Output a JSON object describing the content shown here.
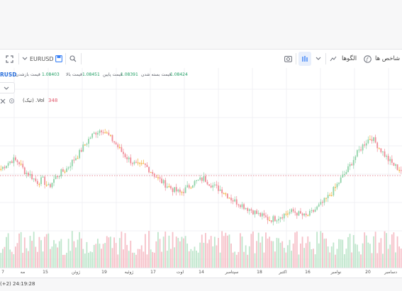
{
  "toolbar": {
    "symbol": "EURUSD",
    "patterns_label": "الگوها",
    "indicators_label": "شاخص ها",
    "icons": [
      "fullscreen-icon",
      "chevron-down-icon",
      "save-icon",
      "search-icon",
      "camera-icon",
      "bar-chart-icon",
      "chevron-down-icon",
      "function-icon"
    ]
  },
  "info": {
    "symbol": "RUSD",
    "close_label": "قیمت بسته شدن",
    "close_value": "1.08424",
    "low_label": "قیمت پایین",
    "low_value": "1.08391",
    "high_label": "قیمت بالا",
    "high_value": "1.08451",
    "open_label": "قیمت بازشدن",
    "open_value": "1.08403"
  },
  "volume": {
    "label": "(تیک) .Vol",
    "value": "348"
  },
  "xaxis": {
    "labels": [
      "7",
      "مه",
      "15",
      "ژوئن",
      "19",
      "ژوئیه",
      "17",
      "اوت",
      "14",
      "سپتامبر",
      "18",
      "اکتبر",
      "16",
      "نوامبر",
      "20",
      "دسامبر"
    ]
  },
  "status": {
    "time_text": "(+2) 24:19:28"
  },
  "colors": {
    "up": "#8fd3a8",
    "down": "#f08c98",
    "doji": "#f2b13c",
    "volume_up": "#bfe6cc",
    "volume_down": "#f6c0c8",
    "price_line": "#e06a78",
    "accent": "#3b82f6"
  },
  "chart_data": {
    "type": "candlestick",
    "series": [
      {
        "values": [
          0.38,
          0.42,
          0.45,
          0.43,
          0.36,
          0.33,
          0.28,
          0.3,
          0.24,
          0.31,
          0.35,
          0.38,
          0.44,
          0.49,
          0.56,
          0.62,
          0.66,
          0.68,
          0.63,
          0.58,
          0.52,
          0.47,
          0.43,
          0.4,
          0.41,
          0.37,
          0.32,
          0.28,
          0.25,
          0.22,
          0.2,
          0.23,
          0.27,
          0.29,
          0.31,
          0.27,
          0.24,
          0.22,
          0.18,
          0.14,
          0.12,
          0.09,
          0.07,
          0.04,
          0.02,
          0.0,
          0.01,
          0.03,
          0.05,
          0.06,
          0.04,
          0.02,
          0.05,
          0.09,
          0.13,
          0.18,
          0.24,
          0.31,
          0.37,
          0.45,
          0.52,
          0.58,
          0.62,
          0.56,
          0.5,
          0.44,
          0.4,
          0.37
        ]
      }
    ]
  }
}
